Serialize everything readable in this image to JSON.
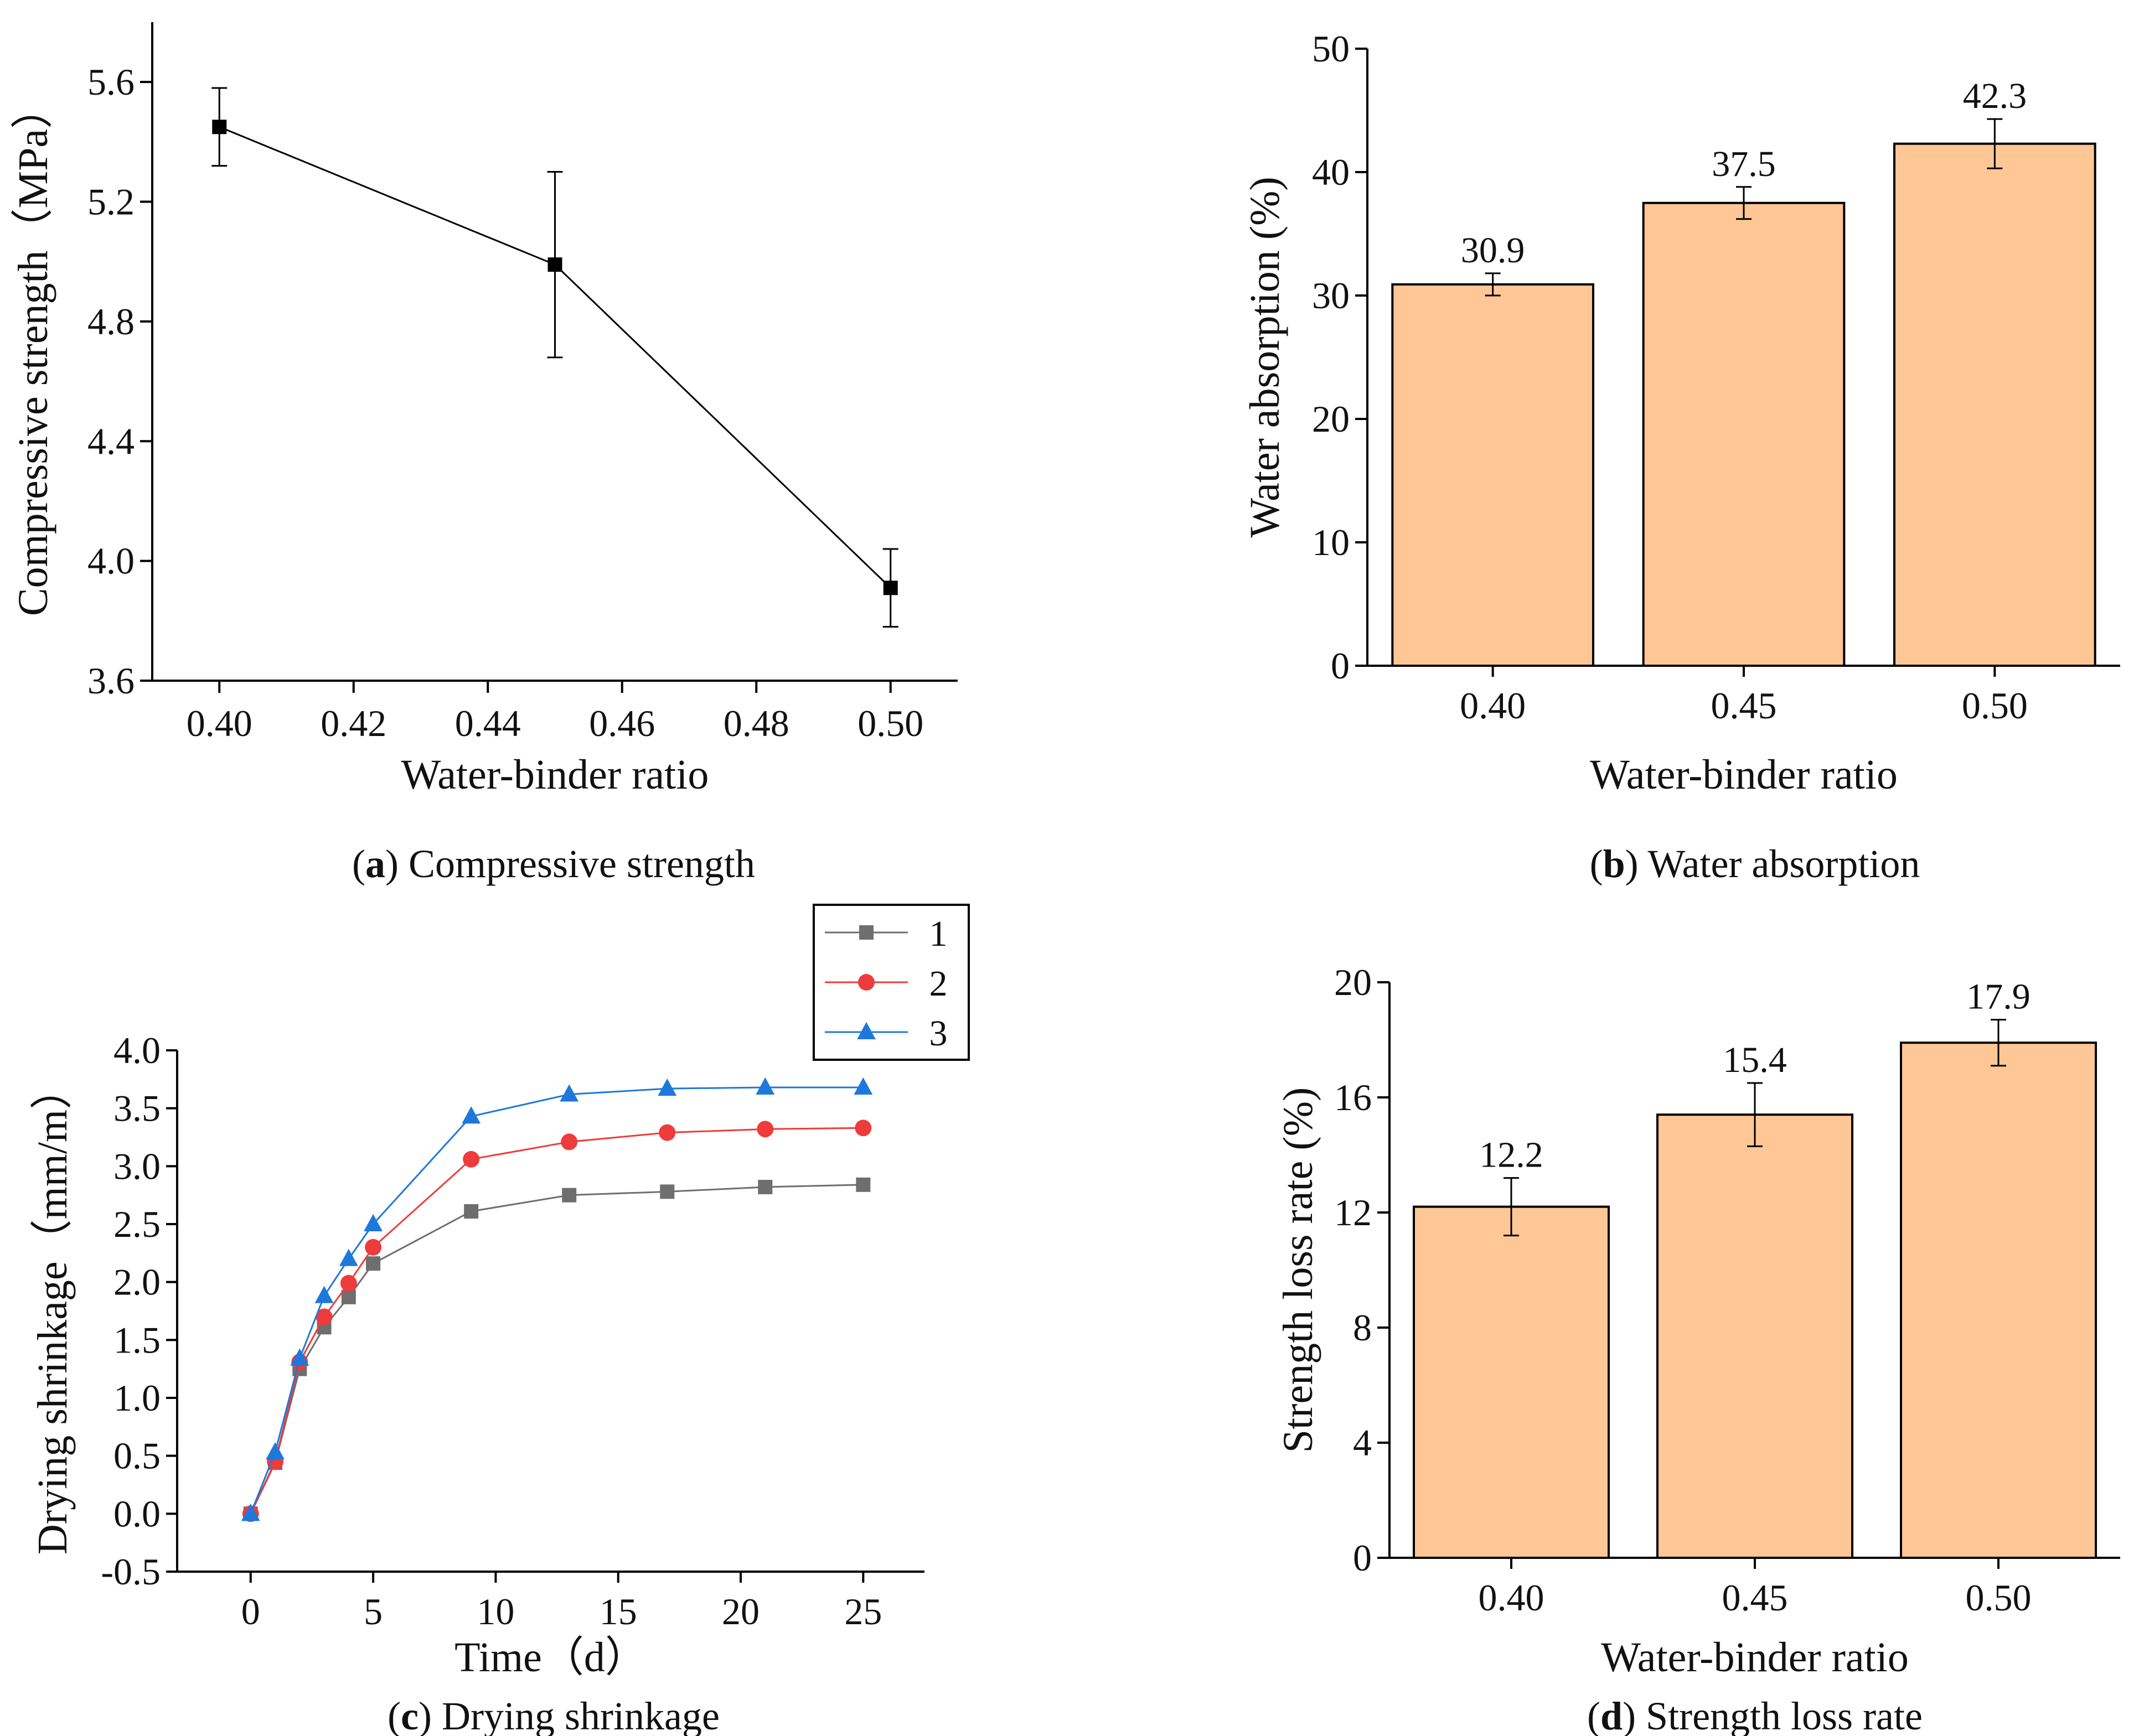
{
  "colors": {
    "bar_fill": "#FEC795",
    "series_1": "#6E6E6E",
    "series_2": "#EE3B3B",
    "series_3": "#1E78DC",
    "line_a": "#000000"
  },
  "chart_data": [
    {
      "id": "a",
      "type": "line",
      "title": "",
      "caption_letter": "a",
      "caption_text": " Compressive strength",
      "xlabel": "Water-binder ratio",
      "ylabel": "Compressive strength（MPa）",
      "xlim": [
        0.39,
        0.51
      ],
      "ylim": [
        3.6,
        5.8
      ],
      "xticks": [
        0.4,
        0.42,
        0.44,
        0.46,
        0.48,
        0.5
      ],
      "xtick_labels": [
        "0.40",
        "0.42",
        "0.44",
        "0.46",
        "0.48",
        "0.50"
      ],
      "yticks": [
        3.6,
        4.0,
        4.4,
        4.8,
        5.2,
        5.6
      ],
      "ytick_labels": [
        "3.6",
        "4.0",
        "4.4",
        "4.8",
        "5.2",
        "5.6"
      ],
      "x": [
        0.4,
        0.45,
        0.5
      ],
      "values": [
        5.45,
        4.99,
        3.91
      ],
      "errors": [
        0.13,
        0.31,
        0.13
      ],
      "grid": false
    },
    {
      "id": "b",
      "type": "bar",
      "title": "",
      "caption_letter": "b",
      "caption_text": " Water absorption",
      "xlabel": "Water-binder ratio",
      "ylabel": "Water absorption (%)",
      "categories": [
        "0.40",
        "0.45",
        "0.50"
      ],
      "values": [
        30.9,
        37.5,
        42.3
      ],
      "value_labels": [
        "30.9",
        "37.5",
        "42.3"
      ],
      "errors": [
        0.9,
        1.3,
        2.0
      ],
      "ylim": [
        0,
        50
      ],
      "yticks": [
        0,
        10,
        20,
        30,
        40,
        50
      ],
      "ytick_labels": [
        "0",
        "10",
        "20",
        "30",
        "40",
        "50"
      ],
      "grid": false
    },
    {
      "id": "c",
      "type": "line",
      "title": "",
      "caption_letter": "c",
      "caption_text": " Drying shrinkage",
      "xlabel": "Time（d）",
      "ylabel": "Drying shrinkage（mm/m）",
      "xlim": [
        -3,
        27.5
      ],
      "ylim": [
        -0.5,
        4.0
      ],
      "xticks": [
        0,
        5,
        10,
        15,
        20,
        25
      ],
      "xtick_labels": [
        "0",
        "5",
        "10",
        "15",
        "20",
        "25"
      ],
      "yticks": [
        -0.5,
        0.0,
        0.5,
        1.0,
        1.5,
        2.0,
        2.5,
        3.0,
        3.5,
        4.0
      ],
      "ytick_labels": [
        "-0.5",
        "0.0",
        "0.5",
        "1.0",
        "1.5",
        "2.0",
        "2.5",
        "3.0",
        "3.5",
        "4.0"
      ],
      "x": [
        0,
        1,
        2,
        3,
        4,
        5,
        9,
        13,
        17,
        21,
        25
      ],
      "series": [
        {
          "name": "1",
          "marker": "square",
          "values": [
            0.0,
            0.44,
            1.25,
            1.61,
            1.87,
            2.16,
            2.61,
            2.75,
            2.78,
            2.82,
            2.84
          ]
        },
        {
          "name": "2",
          "marker": "circle",
          "values": [
            0.0,
            0.45,
            1.31,
            1.7,
            1.99,
            2.3,
            3.06,
            3.21,
            3.29,
            3.32,
            3.33
          ]
        },
        {
          "name": "3",
          "marker": "triangle",
          "values": [
            0.0,
            0.53,
            1.34,
            1.88,
            2.2,
            2.5,
            3.43,
            3.62,
            3.67,
            3.68,
            3.68
          ]
        }
      ],
      "legend": [
        "1",
        "2",
        "3"
      ],
      "legend_position": "top-right",
      "grid": false
    },
    {
      "id": "d",
      "type": "bar",
      "title": "",
      "caption_letter": "d",
      "caption_text": " Strength loss rate",
      "xlabel": "Water-binder ratio",
      "ylabel": "Strength loss rate (%)",
      "categories": [
        "0.40",
        "0.45",
        "0.50"
      ],
      "values": [
        12.2,
        15.4,
        17.9
      ],
      "value_labels": [
        "12.2",
        "15.4",
        "17.9"
      ],
      "errors": [
        1.0,
        1.1,
        0.8
      ],
      "ylim": [
        0,
        20
      ],
      "yticks": [
        0,
        4,
        8,
        12,
        16,
        20
      ],
      "ytick_labels": [
        "0",
        "4",
        "8",
        "12",
        "16",
        "20"
      ],
      "grid": false
    }
  ]
}
